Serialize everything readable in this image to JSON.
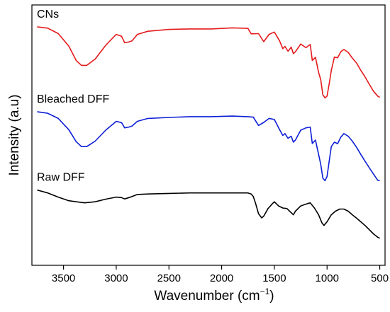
{
  "chart_data": {
    "type": "line",
    "xlabel": "Wavenumber (cm",
    "xlabel_superscript": "−1",
    "xlabel_suffix": ")",
    "ylabel": "Intensity (a.u)",
    "x_reversed": true,
    "xlim": [
      3800,
      450
    ],
    "ylim": [
      0,
      100
    ],
    "x_ticks": [
      3500,
      3000,
      2500,
      2000,
      1500,
      1000,
      500
    ],
    "x_tick_labels": [
      "3500",
      "3000",
      "2500",
      "2000",
      "1500",
      "1000",
      "500"
    ],
    "y_ticks_shown": false,
    "grid": false,
    "legend": "none",
    "series": [
      {
        "name": "CNs",
        "color": "#e41a1c",
        "points": [
          [
            3750,
            91.6
          ],
          [
            3650,
            91.1
          ],
          [
            3550,
            89.0
          ],
          [
            3450,
            84.2
          ],
          [
            3380,
            78.7
          ],
          [
            3330,
            76.8
          ],
          [
            3280,
            76.8
          ],
          [
            3200,
            79.2
          ],
          [
            3100,
            84.5
          ],
          [
            3000,
            88.7
          ],
          [
            2950,
            88.0
          ],
          [
            2920,
            85.5
          ],
          [
            2880,
            85.8
          ],
          [
            2850,
            86.2
          ],
          [
            2800,
            88.7
          ],
          [
            2700,
            89.9
          ],
          [
            2500,
            90.6
          ],
          [
            2300,
            90.8
          ],
          [
            2100,
            90.8
          ],
          [
            1900,
            91.2
          ],
          [
            1750,
            91.0
          ],
          [
            1720,
            88.9
          ],
          [
            1650,
            89.0
          ],
          [
            1600,
            85.9
          ],
          [
            1550,
            88.7
          ],
          [
            1500,
            89.6
          ],
          [
            1450,
            86.2
          ],
          [
            1420,
            83.2
          ],
          [
            1400,
            84.1
          ],
          [
            1370,
            82.2
          ],
          [
            1340,
            83.8
          ],
          [
            1320,
            81.3
          ],
          [
            1300,
            82.0
          ],
          [
            1250,
            85.0
          ],
          [
            1200,
            83.6
          ],
          [
            1160,
            84.8
          ],
          [
            1140,
            78.7
          ],
          [
            1110,
            79.9
          ],
          [
            1080,
            74.1
          ],
          [
            1060,
            71.3
          ],
          [
            1040,
            65.5
          ],
          [
            1020,
            64.3
          ],
          [
            1000,
            65.0
          ],
          [
            980,
            69.6
          ],
          [
            960,
            74.8
          ],
          [
            930,
            80.0
          ],
          [
            900,
            79.7
          ],
          [
            870,
            82.0
          ],
          [
            840,
            82.9
          ],
          [
            800,
            81.8
          ],
          [
            760,
            79.6
          ],
          [
            720,
            77.7
          ],
          [
            680,
            74.9
          ],
          [
            640,
            72.4
          ],
          [
            600,
            69.6
          ],
          [
            560,
            66.9
          ],
          [
            520,
            65.0
          ],
          [
            500,
            64.5
          ]
        ]
      },
      {
        "name": "Bleached DFF",
        "color": "#0d1fd6",
        "points": [
          [
            3750,
            59.0
          ],
          [
            3650,
            58.4
          ],
          [
            3550,
            56.4
          ],
          [
            3450,
            52.1
          ],
          [
            3380,
            47.5
          ],
          [
            3330,
            45.6
          ],
          [
            3280,
            45.6
          ],
          [
            3200,
            47.7
          ],
          [
            3100,
            51.9
          ],
          [
            3000,
            55.3
          ],
          [
            2950,
            54.8
          ],
          [
            2920,
            52.8
          ],
          [
            2880,
            53.1
          ],
          [
            2850,
            53.5
          ],
          [
            2800,
            55.3
          ],
          [
            2700,
            56.4
          ],
          [
            2500,
            56.8
          ],
          [
            2300,
            57.1
          ],
          [
            2100,
            57.1
          ],
          [
            1900,
            57.3
          ],
          [
            1750,
            57.1
          ],
          [
            1700,
            56.9
          ],
          [
            1650,
            53.7
          ],
          [
            1600,
            54.9
          ],
          [
            1550,
            56.4
          ],
          [
            1500,
            56.0
          ],
          [
            1450,
            52.1
          ],
          [
            1420,
            49.9
          ],
          [
            1400,
            50.6
          ],
          [
            1370,
            48.8
          ],
          [
            1340,
            49.6
          ],
          [
            1320,
            47.3
          ],
          [
            1300,
            48.1
          ],
          [
            1250,
            51.9
          ],
          [
            1200,
            52.8
          ],
          [
            1160,
            53.1
          ],
          [
            1140,
            46.8
          ],
          [
            1110,
            48.1
          ],
          [
            1080,
            42.6
          ],
          [
            1060,
            38.8
          ],
          [
            1040,
            33.5
          ],
          [
            1020,
            32.5
          ],
          [
            1000,
            34.1
          ],
          [
            980,
            39.9
          ],
          [
            960,
            45.6
          ],
          [
            930,
            47.3
          ],
          [
            900,
            46.7
          ],
          [
            870,
            49.2
          ],
          [
            840,
            50.6
          ],
          [
            800,
            49.6
          ],
          [
            760,
            47.7
          ],
          [
            720,
            45.3
          ],
          [
            680,
            42.6
          ],
          [
            640,
            40.0
          ],
          [
            600,
            37.5
          ],
          [
            560,
            35.1
          ],
          [
            520,
            32.7
          ],
          [
            500,
            32.5
          ]
        ]
      },
      {
        "name": "Raw DFF",
        "color": "#000000",
        "points": [
          [
            3750,
            28.9
          ],
          [
            3650,
            27.8
          ],
          [
            3550,
            26.2
          ],
          [
            3450,
            24.8
          ],
          [
            3380,
            24.4
          ],
          [
            3300,
            24.0
          ],
          [
            3200,
            24.4
          ],
          [
            3100,
            25.4
          ],
          [
            3000,
            26.2
          ],
          [
            2950,
            26.0
          ],
          [
            2920,
            25.5
          ],
          [
            2880,
            26.0
          ],
          [
            2850,
            26.4
          ],
          [
            2800,
            27.2
          ],
          [
            2700,
            27.4
          ],
          [
            2500,
            27.6
          ],
          [
            2300,
            27.8
          ],
          [
            2100,
            27.8
          ],
          [
            1900,
            27.8
          ],
          [
            1750,
            27.8
          ],
          [
            1720,
            27.4
          ],
          [
            1700,
            26.4
          ],
          [
            1680,
            24.0
          ],
          [
            1650,
            19.8
          ],
          [
            1620,
            18.2
          ],
          [
            1600,
            18.9
          ],
          [
            1560,
            21.8
          ],
          [
            1520,
            23.6
          ],
          [
            1500,
            24.4
          ],
          [
            1460,
            22.8
          ],
          [
            1420,
            22.0
          ],
          [
            1380,
            21.8
          ],
          [
            1340,
            20.2
          ],
          [
            1320,
            19.4
          ],
          [
            1300,
            20.8
          ],
          [
            1250,
            22.8
          ],
          [
            1200,
            23.5
          ],
          [
            1160,
            24.0
          ],
          [
            1120,
            22.0
          ],
          [
            1080,
            19.4
          ],
          [
            1050,
            16.4
          ],
          [
            1030,
            15.3
          ],
          [
            1000,
            16.7
          ],
          [
            960,
            19.4
          ],
          [
            920,
            20.8
          ],
          [
            880,
            21.6
          ],
          [
            840,
            21.6
          ],
          [
            800,
            20.8
          ],
          [
            760,
            19.4
          ],
          [
            720,
            18.1
          ],
          [
            680,
            16.7
          ],
          [
            640,
            15.3
          ],
          [
            600,
            13.7
          ],
          [
            560,
            12.1
          ],
          [
            520,
            10.8
          ],
          [
            500,
            10.4
          ]
        ]
      }
    ]
  }
}
